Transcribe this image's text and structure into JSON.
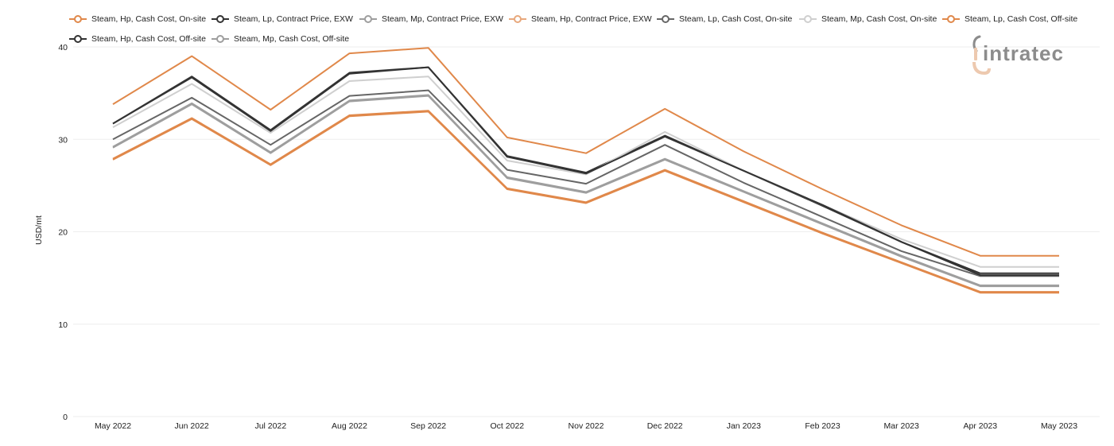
{
  "colors": {
    "orange": "#E0884A",
    "light_orange": "#E8A87C",
    "dark": "#333333",
    "gray": "#9E9E9E",
    "mid_gray": "#777777",
    "light_gray": "#CFCFCF",
    "logo_peach": "#EDC9AF",
    "logo_gray": "#8C8C8C"
  },
  "watermark": {
    "text": "intratec"
  },
  "chart_data": {
    "type": "line",
    "ylabel": "USD/mt",
    "ylim": [
      0,
      40
    ],
    "yticks": [
      0,
      10,
      20,
      30,
      40
    ],
    "grid": true,
    "legend_position": "top-left",
    "categories": [
      "May 2022",
      "Jun 2022",
      "Jul 2022",
      "Aug 2022",
      "Sep 2022",
      "Oct 2022",
      "Nov 2022",
      "Dec 2022",
      "Jan 2023",
      "Feb 2023",
      "Mar 2023",
      "Apr 2023",
      "May 2023"
    ],
    "series": [
      {
        "name": "Steam, Hp, Cash Cost, On-site",
        "color": "#E0884A",
        "values": [
          27.9,
          32.3,
          27.3,
          32.6,
          33.1,
          24.7,
          23.2,
          26.7,
          23.3,
          19.9,
          16.7,
          13.5,
          13.5
        ]
      },
      {
        "name": "Steam, Lp, Contract Price, EXW",
        "color": "#333333",
        "values": [
          31.7,
          36.8,
          31.0,
          37.2,
          37.8,
          28.2,
          26.4,
          30.4,
          26.6,
          22.8,
          18.9,
          15.5,
          15.5
        ]
      },
      {
        "name": "Steam, Mp, Contract Price, EXW",
        "color": "#9E9E9E",
        "values": [
          29.2,
          33.9,
          28.6,
          34.2,
          34.8,
          25.9,
          24.3,
          27.9,
          24.4,
          20.9,
          17.4,
          14.2,
          14.2
        ]
      },
      {
        "name": "Steam, Hp, Contract Price, EXW",
        "color": "#E0884A",
        "values": [
          33.8,
          39.0,
          33.2,
          39.3,
          39.9,
          30.2,
          28.5,
          33.3,
          28.7,
          24.6,
          20.7,
          17.4,
          17.4
        ]
      },
      {
        "name": "Steam, Lp, Cash Cost, On-site",
        "color": "#666666",
        "values": [
          30.0,
          34.5,
          29.4,
          34.7,
          35.3,
          26.7,
          25.2,
          29.4,
          25.3,
          21.6,
          17.9,
          15.2,
          15.2
        ]
      },
      {
        "name": "Steam, Mp, Cash Cost, On-site",
        "color": "#CFCFCF",
        "values": [
          31.3,
          36.0,
          30.7,
          36.3,
          36.8,
          27.7,
          26.2,
          30.8,
          26.6,
          22.9,
          19.2,
          16.2,
          16.2
        ]
      },
      {
        "name": "Steam, Lp, Cash Cost, Off-site",
        "color": "#E0884A",
        "values": [
          27.8,
          32.2,
          27.2,
          32.5,
          33.0,
          24.6,
          23.1,
          26.6,
          23.2,
          19.8,
          16.6,
          13.4,
          13.4
        ]
      },
      {
        "name": "Steam, Hp, Cash Cost, Off-site",
        "color": "#333333",
        "values": [
          31.7,
          36.7,
          30.9,
          37.1,
          37.8,
          28.1,
          26.3,
          30.3,
          26.6,
          22.9,
          18.9,
          15.3,
          15.3
        ]
      },
      {
        "name": "Steam, Mp, Cash Cost, Off-site",
        "color": "#9E9E9E",
        "values": [
          29.1,
          33.8,
          28.5,
          34.1,
          34.7,
          25.8,
          24.2,
          27.8,
          24.3,
          20.8,
          17.3,
          14.1,
          14.1
        ]
      }
    ]
  }
}
